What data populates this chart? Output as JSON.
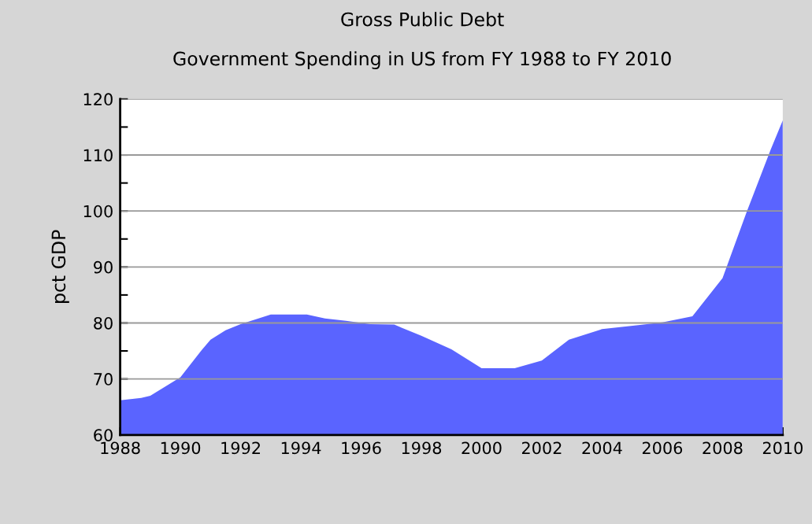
{
  "chart_data": {
    "type": "area",
    "title": "Gross Public Debt",
    "subtitle": "Government Spending in US from FY 1988 to FY 2010",
    "ylabel": "pct GDP",
    "x": [
      1988,
      1988.7,
      1989,
      1990,
      1990.7,
      1991,
      1991.5,
      1992,
      1993,
      1994.2,
      1994.8,
      1995.5,
      1996.3,
      1997.1,
      1998,
      1999,
      2000,
      2001.1,
      2002,
      2002.9,
      2004,
      2005.2,
      2006,
      2007,
      2008,
      2008.8,
      2009.6,
      2010
    ],
    "series": [
      {
        "color": "#5a64ff",
        "values": [
          66.2,
          66.6,
          67.0,
          70.3,
          75.1,
          77.0,
          78.7,
          79.8,
          81.5,
          81.5,
          80.8,
          80.4,
          79.8,
          79.7,
          77.7,
          75.3,
          71.9,
          71.9,
          73.3,
          77.0,
          78.9,
          79.6,
          80.1,
          81.2,
          88.0,
          99.8,
          111.0,
          116.2
        ]
      }
    ],
    "xlim": [
      1988,
      2010
    ],
    "xticks": [
      1988,
      1990,
      1992,
      1994,
      1996,
      1998,
      2000,
      2002,
      2004,
      2006,
      2008,
      2010
    ],
    "ylim": [
      60,
      120
    ],
    "yticks": [
      60,
      {
        "value": 65,
        "label": null
      },
      70,
      {
        "value": 75,
        "label": null
      },
      80,
      {
        "value": 85,
        "label": null
      },
      90,
      {
        "value": 95,
        "label": null
      },
      100,
      {
        "value": 105,
        "label": null
      },
      110,
      {
        "value": 115,
        "label": null
      },
      120
    ],
    "grid": "y"
  }
}
